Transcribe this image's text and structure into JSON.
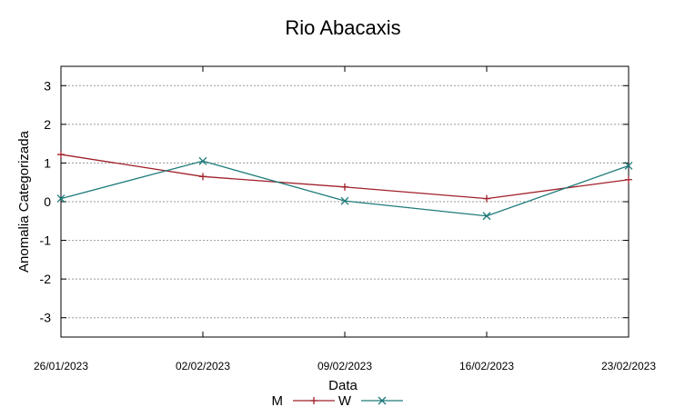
{
  "chart_data": {
    "type": "line",
    "title": "Rio Abacaxis",
    "xlabel": "Data",
    "ylabel": "Anomalia Categorizada",
    "categories": [
      "26/01/2023",
      "02/02/2023",
      "09/02/2023",
      "16/02/2023",
      "23/02/2023"
    ],
    "ylim": [
      -3.5,
      3.5
    ],
    "yticks": [
      "3",
      "2",
      "1",
      "0",
      "-1",
      "-2",
      "-3"
    ],
    "grid": true,
    "legend_position": "bottom",
    "series": [
      {
        "name": "M",
        "color": "#a0202a",
        "marker": "plus",
        "values": [
          1.22,
          0.65,
          0.38,
          0.08,
          0.57
        ]
      },
      {
        "name": "W",
        "color": "#1e7a7a",
        "marker": "cross",
        "values": [
          0.08,
          1.05,
          0.02,
          -0.37,
          0.93
        ]
      }
    ]
  }
}
